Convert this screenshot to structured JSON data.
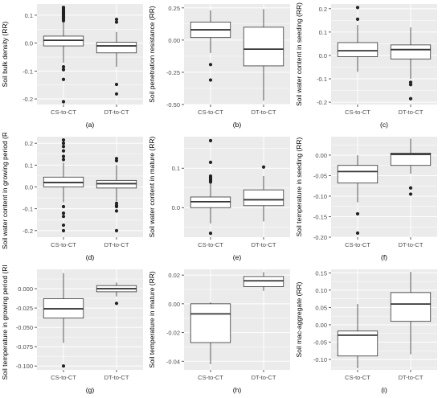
{
  "figure": {
    "background": "#ffffff",
    "panel_background": "#ebebeb",
    "grid_color": "#ffffff",
    "box_fill": "#ffffff",
    "box_stroke": "#333333",
    "text_color": "#4d4d4d"
  },
  "chart_data": [
    {
      "type": "boxplot",
      "panel_label": "(a)",
      "ylabel": "Soil bulk density (RR)",
      "categories": [
        "CS-to-CT",
        "DT-to-CT"
      ],
      "ylim": [
        -0.22,
        0.14
      ],
      "yticks": [
        -0.2,
        -0.1,
        0.0,
        0.1
      ],
      "ytick_labels": [
        "-0.2",
        "-0.1",
        "0.0",
        "0.1"
      ],
      "grid": true,
      "boxes": [
        {
          "q1": -0.01,
          "median": 0.01,
          "q3": 0.025,
          "whisker_low": -0.07,
          "whisker_high": 0.075,
          "outliers": [
            0.128,
            0.124,
            0.12,
            0.116,
            0.112,
            0.108,
            0.104,
            0.1,
            0.096,
            0.092,
            0.088,
            0.084,
            0.08,
            -0.085,
            -0.095,
            -0.13,
            -0.21
          ]
        },
        {
          "q1": -0.035,
          "median": -0.01,
          "q3": 0.003,
          "whisker_low": -0.085,
          "whisker_high": 0.04,
          "outliers": [
            0.085,
            0.075,
            -0.148,
            -0.182
          ]
        }
      ]
    },
    {
      "type": "boxplot",
      "panel_label": "(b)",
      "ylabel": "Soil penetration resistance (RR)",
      "categories": [
        "CS-to-CT",
        "DT-to-CT"
      ],
      "ylim": [
        -0.5,
        0.28
      ],
      "yticks": [
        -0.5,
        -0.25,
        0.0,
        0.25
      ],
      "ytick_labels": [
        "-0.50",
        "-0.25",
        "0.00",
        "0.25"
      ],
      "grid": true,
      "boxes": [
        {
          "q1": 0.02,
          "median": 0.08,
          "q3": 0.14,
          "whisker_low": -0.1,
          "whisker_high": 0.23,
          "outliers": [
            -0.19,
            -0.31
          ]
        },
        {
          "q1": -0.2,
          "median": -0.07,
          "q3": 0.1,
          "whisker_low": -0.47,
          "whisker_high": 0.24,
          "outliers": []
        }
      ]
    },
    {
      "type": "boxplot",
      "panel_label": "(c)",
      "ylabel": "Soil water content in seeding (RR)",
      "categories": [
        "CS-to-CT",
        "DT-to-CT"
      ],
      "ylim": [
        -0.21,
        0.22
      ],
      "yticks": [
        -0.2,
        -0.1,
        0.0,
        0.1,
        0.2
      ],
      "ytick_labels": [
        "-0.2",
        "-0.1",
        "0.0",
        "0.1",
        "0.2"
      ],
      "grid": true,
      "boxes": [
        {
          "q1": -0.005,
          "median": 0.02,
          "q3": 0.055,
          "whisker_low": -0.07,
          "whisker_high": 0.13,
          "outliers": [
            0.205,
            0.155
          ]
        },
        {
          "q1": -0.015,
          "median": 0.025,
          "q3": 0.045,
          "whisker_low": -0.1,
          "whisker_high": 0.12,
          "outliers": [
            -0.115,
            -0.125,
            -0.185
          ]
        }
      ]
    },
    {
      "type": "boxplot",
      "panel_label": "(d)",
      "ylabel": "Soil water content in growing period (RR)",
      "categories": [
        "CS-to-CT",
        "DT-to-CT"
      ],
      "ylim": [
        -0.23,
        0.23
      ],
      "yticks": [
        -0.2,
        -0.1,
        0.0,
        0.1,
        0.2
      ],
      "ytick_labels": [
        "-0.2",
        "-0.1",
        "0.0",
        "0.1",
        "0.2"
      ],
      "grid": true,
      "boxes": [
        {
          "q1": 0.0,
          "median": 0.02,
          "q3": 0.045,
          "whisker_low": -0.07,
          "whisker_high": 0.11,
          "outliers": [
            0.215,
            0.2,
            0.185,
            0.165,
            0.14,
            0.125,
            -0.09,
            -0.12,
            -0.135,
            -0.175,
            -0.2
          ]
        },
        {
          "q1": -0.005,
          "median": 0.015,
          "q3": 0.03,
          "whisker_low": -0.065,
          "whisker_high": 0.1,
          "outliers": [
            0.13,
            0.12,
            -0.075,
            -0.085,
            -0.09,
            -0.11,
            -0.2
          ]
        }
      ]
    },
    {
      "type": "boxplot",
      "panel_label": "(e)",
      "ylabel": "Soil water content in mature (RR)",
      "categories": [
        "CS-to-CT",
        "DT-to-CT"
      ],
      "ylim": [
        -0.075,
        0.18
      ],
      "yticks": [
        0.0,
        0.1
      ],
      "ytick_labels": [
        "0.0",
        "0.1"
      ],
      "grid": true,
      "boxes": [
        {
          "q1": 0.0,
          "median": 0.015,
          "q3": 0.027,
          "whisker_low": -0.04,
          "whisker_high": 0.062,
          "outliers": [
            0.17,
            0.115,
            0.08,
            0.077,
            0.074,
            0.071,
            0.068,
            0.065,
            -0.065
          ]
        },
        {
          "q1": 0.005,
          "median": 0.02,
          "q3": 0.045,
          "whisker_low": -0.035,
          "whisker_high": 0.08,
          "outliers": [
            0.103
          ]
        }
      ]
    },
    {
      "type": "boxplot",
      "panel_label": "(f)",
      "ylabel": "Soil temperature in seeding (RR)",
      "categories": [
        "CS-to-CT",
        "DT-to-CT"
      ],
      "ylim": [
        -0.2,
        0.045
      ],
      "yticks": [
        -0.2,
        -0.15,
        -0.1,
        -0.05,
        0.0
      ],
      "ytick_labels": [
        "-0.20",
        "-0.15",
        "-0.10",
        "-0.05",
        "0.00"
      ],
      "grid": true,
      "boxes": [
        {
          "q1": -0.068,
          "median": -0.04,
          "q3": -0.025,
          "whisker_low": -0.115,
          "whisker_high": 0.0,
          "outliers": [
            -0.143,
            -0.19
          ]
        },
        {
          "q1": -0.025,
          "median": 0.002,
          "q3": 0.005,
          "whisker_low": -0.045,
          "whisker_high": 0.04,
          "outliers": [
            -0.08,
            -0.095
          ]
        }
      ]
    },
    {
      "type": "boxplot",
      "panel_label": "(g)",
      "ylabel": "Soil temperature in growing period (RR)",
      "categories": [
        "CS-to-CT",
        "DT-to-CT"
      ],
      "ylim": [
        -0.105,
        0.025
      ],
      "yticks": [
        -0.1,
        -0.075,
        -0.05,
        -0.025,
        0.0
      ],
      "ytick_labels": [
        "-0.100",
        "-0.075",
        "-0.050",
        "-0.025",
        "0.000"
      ],
      "grid": true,
      "boxes": [
        {
          "q1": -0.038,
          "median": -0.026,
          "q3": -0.013,
          "whisker_low": -0.07,
          "whisker_high": 0.02,
          "outliers": [
            -0.1
          ]
        },
        {
          "q1": -0.004,
          "median": 0.0,
          "q3": 0.004,
          "whisker_low": -0.01,
          "whisker_high": 0.008,
          "outliers": [
            -0.019
          ]
        }
      ]
    },
    {
      "type": "boxplot",
      "panel_label": "(h)",
      "ylabel": "Soil temperature in mature (RR)",
      "categories": [
        "CS-to-CT",
        "DT-to-CT"
      ],
      "ylim": [
        -0.046,
        0.024
      ],
      "yticks": [
        -0.04,
        -0.02,
        0.0,
        0.02
      ],
      "ytick_labels": [
        "-0.04",
        "-0.02",
        "0.00",
        "0.02"
      ],
      "grid": true,
      "boxes": [
        {
          "q1": -0.027,
          "median": -0.007,
          "q3": 0.0,
          "whisker_low": -0.042,
          "whisker_high": 0.001,
          "outliers": []
        },
        {
          "q1": 0.012,
          "median": 0.016,
          "q3": 0.019,
          "whisker_low": 0.009,
          "whisker_high": 0.022,
          "outliers": []
        }
      ]
    },
    {
      "type": "boxplot",
      "panel_label": "(i)",
      "ylabel": "Soil mac-aggregate (RR)",
      "categories": [
        "CS-to-CT",
        "DT-to-CT"
      ],
      "ylim": [
        -0.13,
        0.16
      ],
      "yticks": [
        -0.1,
        -0.05,
        0.0,
        0.05,
        0.1,
        0.15
      ],
      "ytick_labels": [
        "-0.10",
        "-0.05",
        "0.00",
        "0.05",
        "0.10",
        "0.15"
      ],
      "grid": true,
      "boxes": [
        {
          "q1": -0.09,
          "median": -0.03,
          "q3": -0.018,
          "whisker_low": -0.125,
          "whisker_high": 0.06,
          "outliers": []
        },
        {
          "q1": 0.01,
          "median": 0.06,
          "q3": 0.093,
          "whisker_low": -0.085,
          "whisker_high": 0.153,
          "outliers": []
        }
      ]
    }
  ]
}
